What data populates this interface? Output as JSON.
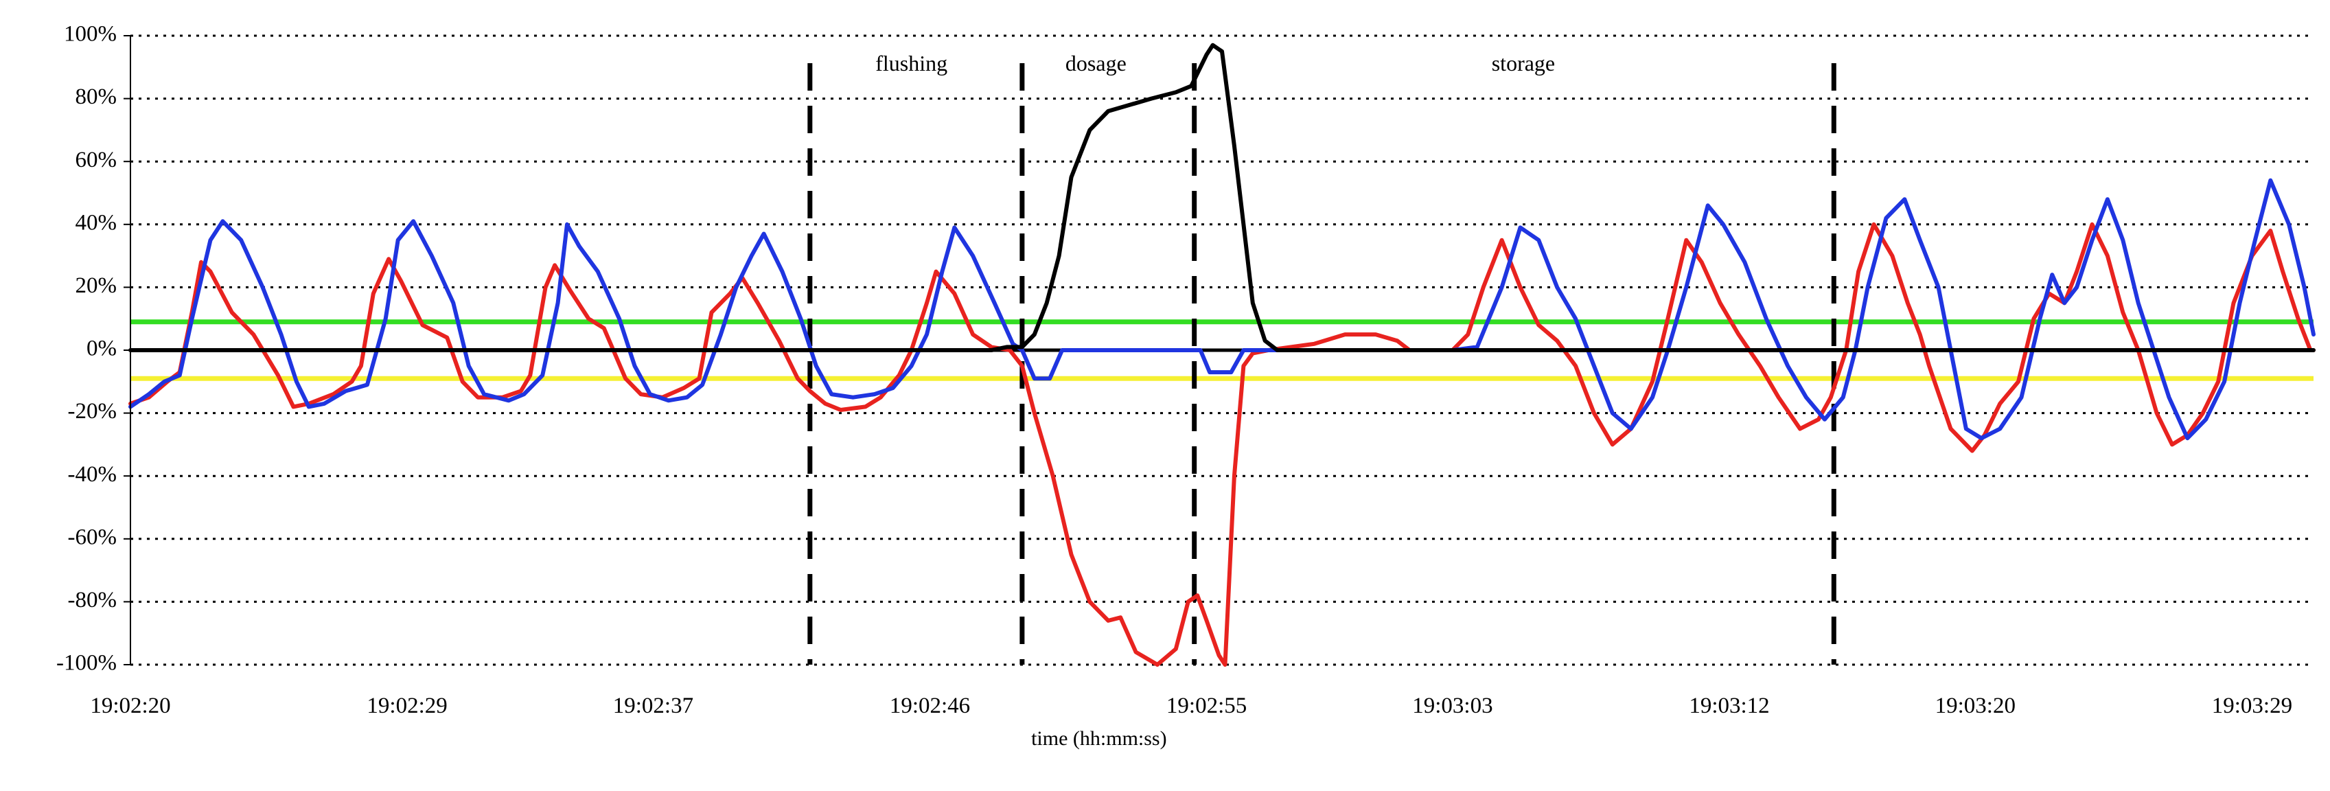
{
  "chart_data": {
    "type": "line",
    "title": "",
    "xlabel": "time (hh:mm:ss)",
    "ylabel": "",
    "x_unit": "seconds after 19:02:20",
    "xlim": [
      0,
      71
    ],
    "ylim": [
      -100,
      100
    ],
    "grid": "horizontal dotted",
    "x_tick_values": [
      0,
      9,
      17,
      26,
      35,
      43,
      52,
      60,
      69
    ],
    "x_tick_labels": [
      "19:02:20",
      "19:02:29",
      "19:02:37",
      "19:02:46",
      "19:02:55",
      "19:03:03",
      "19:03:12",
      "19:03:20",
      "19:03:29"
    ],
    "y_tick_values": [
      100,
      80,
      60,
      40,
      20,
      0,
      -20,
      -40,
      -60,
      -80,
      -100
    ],
    "y_tick_labels": [
      "100%",
      "80%",
      "60%",
      "40%",
      "20%",
      "0%",
      "-20%",
      "-40%",
      "-60%",
      "-80%",
      "-100%"
    ],
    "phase_boundaries": [
      22.1,
      29.0,
      34.6,
      55.4
    ],
    "annotations": [
      {
        "text": "flushing",
        "x": 25.4,
        "y": 91
      },
      {
        "text": "dosage",
        "x": 31.4,
        "y": 91
      },
      {
        "text": "storage",
        "x": 45.3,
        "y": 91
      }
    ],
    "threshold_lines": [
      {
        "name": "upper threshold",
        "y": 9,
        "color": "#33dd22"
      },
      {
        "name": "lower threshold",
        "y": -9,
        "color": "#f5f032"
      }
    ],
    "series": [
      {
        "name": "red",
        "color": "#e8231f",
        "points": [
          [
            0,
            -17
          ],
          [
            0.6,
            -15
          ],
          [
            1.2,
            -10
          ],
          [
            1.6,
            -7
          ],
          [
            2.0,
            12
          ],
          [
            2.3,
            28
          ],
          [
            2.6,
            25
          ],
          [
            3.3,
            12
          ],
          [
            4.0,
            5
          ],
          [
            4.8,
            -8
          ],
          [
            5.3,
            -18
          ],
          [
            5.8,
            -17
          ],
          [
            6.6,
            -14
          ],
          [
            7.2,
            -10
          ],
          [
            7.5,
            -5
          ],
          [
            7.9,
            18
          ],
          [
            8.4,
            29
          ],
          [
            8.8,
            22
          ],
          [
            9.5,
            8
          ],
          [
            10.3,
            4
          ],
          [
            10.8,
            -10
          ],
          [
            11.3,
            -15
          ],
          [
            12.1,
            -15
          ],
          [
            12.7,
            -13
          ],
          [
            13.0,
            -8
          ],
          [
            13.5,
            20
          ],
          [
            13.8,
            27
          ],
          [
            14.3,
            19
          ],
          [
            14.9,
            10
          ],
          [
            15.4,
            7
          ],
          [
            16.1,
            -9
          ],
          [
            16.6,
            -14
          ],
          [
            17.3,
            -15
          ],
          [
            18.0,
            -12
          ],
          [
            18.5,
            -9
          ],
          [
            18.9,
            12
          ],
          [
            19.5,
            18
          ],
          [
            19.9,
            23
          ],
          [
            20.4,
            15
          ],
          [
            21.1,
            3
          ],
          [
            21.7,
            -9
          ],
          [
            22.1,
            -13
          ],
          [
            22.6,
            -17
          ],
          [
            23.1,
            -19
          ],
          [
            23.9,
            -18
          ],
          [
            24.4,
            -15
          ],
          [
            25.0,
            -8
          ],
          [
            25.4,
            0
          ],
          [
            25.9,
            15
          ],
          [
            26.2,
            25
          ],
          [
            26.8,
            18
          ],
          [
            27.4,
            5
          ],
          [
            28.0,
            1
          ],
          [
            28.6,
            0
          ],
          [
            29.0,
            -5
          ],
          [
            29.4,
            -20
          ],
          [
            30.0,
            -40
          ],
          [
            30.6,
            -65
          ],
          [
            31.2,
            -80
          ],
          [
            31.8,
            -86
          ],
          [
            32.2,
            -85
          ],
          [
            32.7,
            -96
          ],
          [
            33.4,
            -100
          ],
          [
            34.0,
            -95
          ],
          [
            34.4,
            -80
          ],
          [
            34.7,
            -78
          ],
          [
            35.0,
            -86
          ],
          [
            35.4,
            -97
          ],
          [
            35.6,
            -100
          ],
          [
            35.9,
            -40
          ],
          [
            36.2,
            -5
          ],
          [
            36.5,
            -1
          ],
          [
            37.0,
            0
          ],
          [
            38.5,
            2
          ],
          [
            39.5,
            5
          ],
          [
            40.5,
            5
          ],
          [
            41.2,
            3
          ],
          [
            41.6,
            0
          ],
          [
            43.0,
            0
          ],
          [
            43.5,
            5
          ],
          [
            44.0,
            20
          ],
          [
            44.6,
            35
          ],
          [
            45.2,
            20
          ],
          [
            45.8,
            8
          ],
          [
            46.4,
            3
          ],
          [
            47.0,
            -5
          ],
          [
            47.6,
            -20
          ],
          [
            48.2,
            -30
          ],
          [
            48.8,
            -25
          ],
          [
            49.5,
            -10
          ],
          [
            50.0,
            10
          ],
          [
            50.6,
            35
          ],
          [
            51.1,
            28
          ],
          [
            51.7,
            15
          ],
          [
            52.3,
            5
          ],
          [
            53.0,
            -5
          ],
          [
            53.6,
            -15
          ],
          [
            54.3,
            -25
          ],
          [
            54.9,
            -22
          ],
          [
            55.3,
            -15
          ],
          [
            55.8,
            0
          ],
          [
            56.2,
            25
          ],
          [
            56.7,
            40
          ],
          [
            57.3,
            30
          ],
          [
            57.8,
            15
          ],
          [
            58.2,
            5
          ],
          [
            58.5,
            -5
          ],
          [
            59.2,
            -25
          ],
          [
            59.9,
            -32
          ],
          [
            60.3,
            -27
          ],
          [
            60.8,
            -17
          ],
          [
            61.4,
            -10
          ],
          [
            61.9,
            10
          ],
          [
            62.4,
            18
          ],
          [
            62.9,
            15
          ],
          [
            63.3,
            25
          ],
          [
            63.8,
            40
          ],
          [
            64.3,
            30
          ],
          [
            64.8,
            12
          ],
          [
            65.3,
            0
          ],
          [
            65.9,
            -20
          ],
          [
            66.4,
            -30
          ],
          [
            66.9,
            -27
          ],
          [
            67.4,
            -20
          ],
          [
            67.9,
            -10
          ],
          [
            68.4,
            15
          ],
          [
            69.0,
            30
          ],
          [
            69.6,
            38
          ],
          [
            70.0,
            25
          ],
          [
            70.5,
            10
          ],
          [
            70.9,
            0
          ],
          [
            71,
            0
          ]
        ]
      },
      {
        "name": "blue",
        "color": "#1f35e0",
        "points": [
          [
            0,
            -18
          ],
          [
            0.6,
            -14
          ],
          [
            1.1,
            -10
          ],
          [
            1.6,
            -8
          ],
          [
            2.0,
            10
          ],
          [
            2.6,
            35
          ],
          [
            3.0,
            41
          ],
          [
            3.6,
            35
          ],
          [
            4.3,
            20
          ],
          [
            4.9,
            5
          ],
          [
            5.4,
            -10
          ],
          [
            5.8,
            -18
          ],
          [
            6.3,
            -17
          ],
          [
            7.0,
            -13
          ],
          [
            7.7,
            -11
          ],
          [
            8.3,
            10
          ],
          [
            8.7,
            35
          ],
          [
            9.2,
            41
          ],
          [
            9.8,
            30
          ],
          [
            10.5,
            15
          ],
          [
            11.0,
            -5
          ],
          [
            11.5,
            -14
          ],
          [
            12.3,
            -16
          ],
          [
            12.8,
            -14
          ],
          [
            13.4,
            -8
          ],
          [
            13.9,
            15
          ],
          [
            14.2,
            40
          ],
          [
            14.6,
            33
          ],
          [
            15.2,
            25
          ],
          [
            15.9,
            10
          ],
          [
            16.4,
            -5
          ],
          [
            16.9,
            -14
          ],
          [
            17.5,
            -16
          ],
          [
            18.1,
            -15
          ],
          [
            18.6,
            -11
          ],
          [
            19.2,
            5
          ],
          [
            19.7,
            20
          ],
          [
            20.2,
            30
          ],
          [
            20.6,
            37
          ],
          [
            21.2,
            25
          ],
          [
            21.8,
            10
          ],
          [
            22.3,
            -5
          ],
          [
            22.8,
            -14
          ],
          [
            23.5,
            -15
          ],
          [
            24.2,
            -14
          ],
          [
            24.8,
            -12
          ],
          [
            25.4,
            -5
          ],
          [
            25.9,
            5
          ],
          [
            26.4,
            25
          ],
          [
            26.8,
            39
          ],
          [
            27.4,
            30
          ],
          [
            28.1,
            15
          ],
          [
            28.7,
            2
          ],
          [
            29.0,
            0
          ],
          [
            29.4,
            -9
          ],
          [
            29.9,
            -9
          ],
          [
            30.3,
            0
          ],
          [
            34.8,
            0
          ],
          [
            35.1,
            -7
          ],
          [
            35.8,
            -7
          ],
          [
            36.2,
            0
          ],
          [
            43.0,
            0
          ],
          [
            43.8,
            1
          ],
          [
            44.6,
            20
          ],
          [
            45.2,
            39
          ],
          [
            45.8,
            35
          ],
          [
            46.4,
            20
          ],
          [
            47.0,
            10
          ],
          [
            47.6,
            -5
          ],
          [
            48.2,
            -20
          ],
          [
            48.8,
            -25
          ],
          [
            49.5,
            -15
          ],
          [
            50.0,
            0
          ],
          [
            50.6,
            20
          ],
          [
            51.3,
            46
          ],
          [
            51.8,
            40
          ],
          [
            52.5,
            28
          ],
          [
            53.2,
            10
          ],
          [
            53.9,
            -5
          ],
          [
            54.5,
            -15
          ],
          [
            55.1,
            -22
          ],
          [
            55.7,
            -15
          ],
          [
            56.1,
            0
          ],
          [
            56.5,
            20
          ],
          [
            57.1,
            42
          ],
          [
            57.7,
            48
          ],
          [
            58.2,
            35
          ],
          [
            58.8,
            20
          ],
          [
            59.2,
            0
          ],
          [
            59.7,
            -25
          ],
          [
            60.2,
            -28
          ],
          [
            60.8,
            -25
          ],
          [
            61.5,
            -15
          ],
          [
            62.1,
            10
          ],
          [
            62.5,
            24
          ],
          [
            62.9,
            15
          ],
          [
            63.3,
            20
          ],
          [
            63.8,
            35
          ],
          [
            64.3,
            48
          ],
          [
            64.8,
            35
          ],
          [
            65.3,
            15
          ],
          [
            65.8,
            0
          ],
          [
            66.3,
            -15
          ],
          [
            66.9,
            -28
          ],
          [
            67.5,
            -22
          ],
          [
            68.1,
            -10
          ],
          [
            68.6,
            15
          ],
          [
            69.1,
            35
          ],
          [
            69.6,
            54
          ],
          [
            70.2,
            40
          ],
          [
            70.7,
            20
          ],
          [
            71,
            5
          ]
        ]
      },
      {
        "name": "black",
        "color": "#000000",
        "points": [
          [
            0,
            0
          ],
          [
            28.0,
            0
          ],
          [
            28.5,
            1
          ],
          [
            29.0,
            1
          ],
          [
            29.4,
            5
          ],
          [
            29.8,
            15
          ],
          [
            30.2,
            30
          ],
          [
            30.6,
            55
          ],
          [
            31.2,
            70
          ],
          [
            31.8,
            76
          ],
          [
            32.5,
            78
          ],
          [
            33.2,
            80
          ],
          [
            34.0,
            82
          ],
          [
            34.5,
            84
          ],
          [
            35.0,
            94
          ],
          [
            35.2,
            97
          ],
          [
            35.5,
            95
          ],
          [
            35.7,
            80
          ],
          [
            35.9,
            65
          ],
          [
            36.2,
            40
          ],
          [
            36.5,
            15
          ],
          [
            36.9,
            3
          ],
          [
            37.3,
            0
          ],
          [
            71,
            0
          ]
        ]
      }
    ]
  }
}
